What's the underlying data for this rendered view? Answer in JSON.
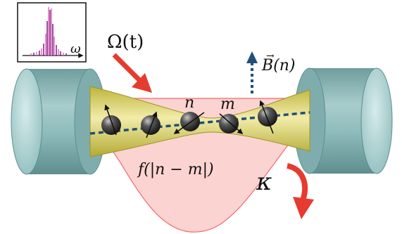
{
  "labels": {
    "omega_t": "Ω(t)",
    "b_field": "B(n)",
    "b_vec": "→",
    "n": "n",
    "m": "m",
    "coupling": "f(|n − m|)",
    "kappa": "κ",
    "axis_omega": "ω"
  },
  "colors": {
    "cavity": "#8fbcbc",
    "cavity_dark": "#4f8080",
    "cavity_light": "#c4dede",
    "beam": "#c9c043",
    "beam_light": "#ede79a",
    "pink_fill": "#fbd3d0",
    "pink_edge": "#ef6b6b",
    "red_arrow": "#e63b2e",
    "blue_dash": "#1f4f7a",
    "ion": "#2a2a2a",
    "spectrum_pink": "#e07ab8",
    "spectrum_purple": "#8a2a9a"
  },
  "icons": {
    "ion": "sphere-ion-icon",
    "spin": "spin-arrow-icon"
  }
}
